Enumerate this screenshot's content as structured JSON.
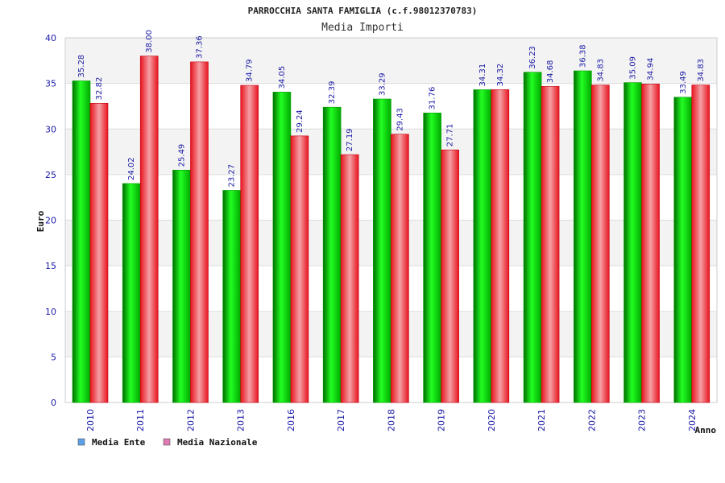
{
  "chart_data": {
    "type": "bar",
    "title": "PARROCCHIA SANTA FAMIGLIA (c.f.98012370783)",
    "subtitle": "Media Importi",
    "xlabel": "Anno",
    "ylabel": "Euro",
    "ylim": [
      0,
      40
    ],
    "yticks": [
      0,
      5,
      10,
      15,
      20,
      25,
      30,
      35,
      40
    ],
    "grid": true,
    "legend_position": "bottom-left",
    "categories": [
      "2010",
      "2011",
      "2012",
      "2013",
      "2016",
      "2017",
      "2018",
      "2019",
      "2020",
      "2021",
      "2022",
      "2023",
      "2024"
    ],
    "series": [
      {
        "name": "Media Ente",
        "color": "#00c000",
        "legend_color": "#5aa0e8",
        "values": [
          35.28,
          24.02,
          25.49,
          23.27,
          34.05,
          32.39,
          33.29,
          31.76,
          34.31,
          36.23,
          36.38,
          35.09,
          33.49
        ],
        "labels": [
          "35.28",
          "24.02",
          "25.49",
          "23.27",
          "34.05",
          "32.39",
          "33.29",
          "31.76",
          "34.31",
          "36.23",
          "36.38",
          "35.09",
          "33.49"
        ]
      },
      {
        "name": "Media Nazionale",
        "color": "#e8141e",
        "legend_color": "#e07ab4",
        "values": [
          32.82,
          38.0,
          37.36,
          34.79,
          29.24,
          27.19,
          29.43,
          27.71,
          34.32,
          34.68,
          34.83,
          34.94,
          34.83
        ],
        "labels": [
          "32.82",
          "38.00",
          "37.36",
          "34.79",
          "29.24",
          "27.19",
          "29.43",
          "27.71",
          "34.32",
          "34.68",
          "34.83",
          "34.94",
          "34.83"
        ]
      }
    ]
  }
}
